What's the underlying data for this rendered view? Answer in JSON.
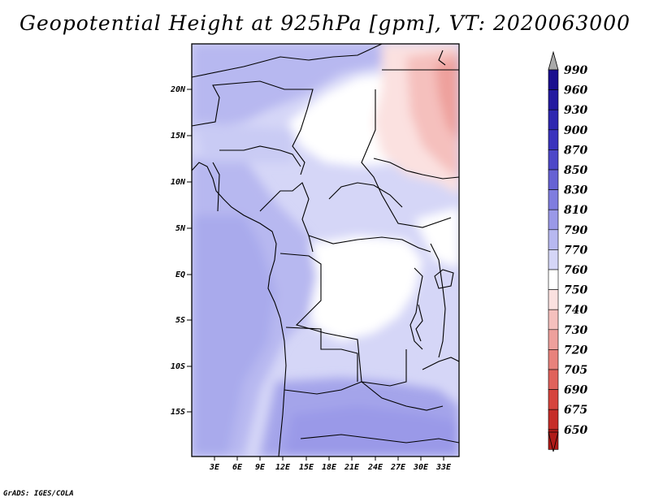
{
  "title": "Geopotential Height at 925hPa [gpm], VT: 2020063000",
  "footer": "GrADS: IGES/COLA",
  "map": {
    "lat_ticks": [
      "20N",
      "15N",
      "10N",
      "5N",
      "EQ",
      "5S",
      "10S",
      "15S"
    ],
    "lon_ticks": [
      "3E",
      "6E",
      "9E",
      "12E",
      "15E",
      "18E",
      "21E",
      "24E",
      "27E",
      "30E",
      "33E"
    ]
  },
  "colorbar": {
    "labels": [
      "990",
      "960",
      "930",
      "900",
      "870",
      "850",
      "830",
      "810",
      "790",
      "770",
      "760",
      "750",
      "740",
      "730",
      "720",
      "705",
      "690",
      "675",
      "650"
    ],
    "colors": [
      "#1a0f8f",
      "#241aa0",
      "#2e27b0",
      "#3a33bd",
      "#4d48c8",
      "#6662d4",
      "#7f7ddf",
      "#9a99e8",
      "#b7b8f0",
      "#d5d6f7",
      "#ffffff",
      "#fbe1e0",
      "#f5c0bd",
      "#eea09c",
      "#e8827c",
      "#e0625b",
      "#d6443d",
      "#c62d28",
      "#b01a18"
    ],
    "top_arrow_color": "#a9a9a9"
  }
}
